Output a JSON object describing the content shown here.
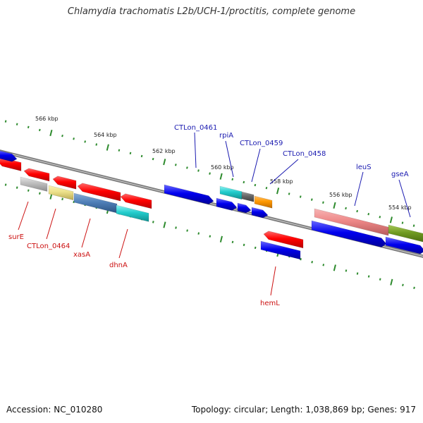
{
  "title": "Chlamydia trachomatis L2b/UCH-1/proctitis, complete genome",
  "footer": {
    "accession": "Accession: NC_010280",
    "topology": "Topology: circular",
    "length": "Length: 1,038,869 bp",
    "genes": "Genes: 917"
  },
  "colors": {
    "backbone": "#7a7a7a",
    "tick": "#2e8b2e",
    "label_forward": "#1a1ab0",
    "label_reverse": "#cc1111"
  },
  "scale_labels": [
    "566 kbp",
    "564 kbp",
    "562 kbp",
    "560 kbp",
    "558 kbp",
    "556 kbp",
    "554 kbp"
  ],
  "forward_labels": [
    "CTLon_0461",
    "rpiA",
    "CTLon_0459",
    "CTLon_0458",
    "leuS",
    "gseA"
  ],
  "reverse_labels": [
    "surE",
    "CTLon_0464",
    "xasA",
    "dhnA",
    "hemL"
  ]
}
